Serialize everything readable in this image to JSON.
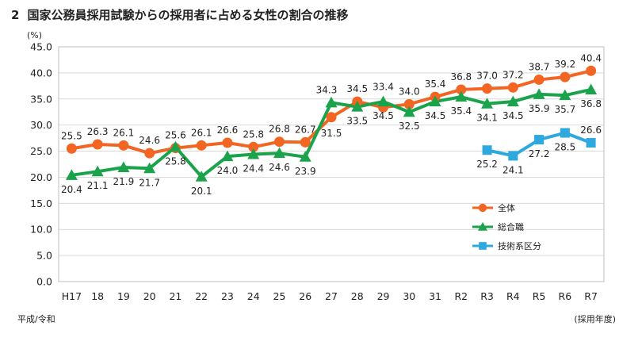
{
  "header": {
    "number": "2",
    "title": "国家公務員採用試験からの採用者に占める女性の割合の推移"
  },
  "unit_label": "(%)",
  "era_note": "平成/令和",
  "x_axis_note": "(採用年度)",
  "colors": {
    "overall": "#f26522",
    "general": "#1aa34a",
    "technical": "#2ea9df",
    "grid": "#d9d9d9"
  },
  "chart_data": {
    "type": "line",
    "title": "",
    "categories": [
      "H17",
      "18",
      "19",
      "20",
      "21",
      "22",
      "23",
      "24",
      "25",
      "26",
      "27",
      "28",
      "29",
      "30",
      "31",
      "R2",
      "R3",
      "R4",
      "R5",
      "R6",
      "R7"
    ],
    "ylim": [
      0,
      45
    ],
    "yticks": [
      "0.0",
      "5.0",
      "10.0",
      "15.0",
      "20.0",
      "25.0",
      "30.0",
      "35.0",
      "40.0",
      "45.0"
    ],
    "grid": true,
    "legend_position": "bottom-right",
    "series": [
      {
        "name": "全体",
        "color": "#f26522",
        "marker": "circle",
        "values": [
          25.5,
          26.3,
          26.1,
          24.6,
          25.6,
          26.1,
          26.6,
          25.8,
          26.8,
          26.7,
          31.5,
          34.5,
          33.4,
          34.0,
          35.4,
          36.8,
          37.0,
          37.2,
          38.7,
          39.2,
          40.4
        ]
      },
      {
        "name": "総合職",
        "color": "#1aa34a",
        "marker": "triangle",
        "values": [
          20.4,
          21.1,
          21.9,
          21.7,
          25.8,
          20.1,
          24.0,
          24.4,
          24.6,
          23.9,
          34.3,
          33.5,
          34.5,
          32.5,
          34.5,
          35.4,
          34.1,
          34.5,
          35.9,
          35.7,
          36.8
        ]
      },
      {
        "name": "技術系区分",
        "color": "#2ea9df",
        "marker": "square",
        "values": [
          null,
          null,
          null,
          null,
          null,
          null,
          null,
          null,
          null,
          null,
          null,
          null,
          null,
          null,
          null,
          null,
          25.2,
          24.1,
          27.2,
          28.5,
          26.6
        ]
      }
    ]
  }
}
